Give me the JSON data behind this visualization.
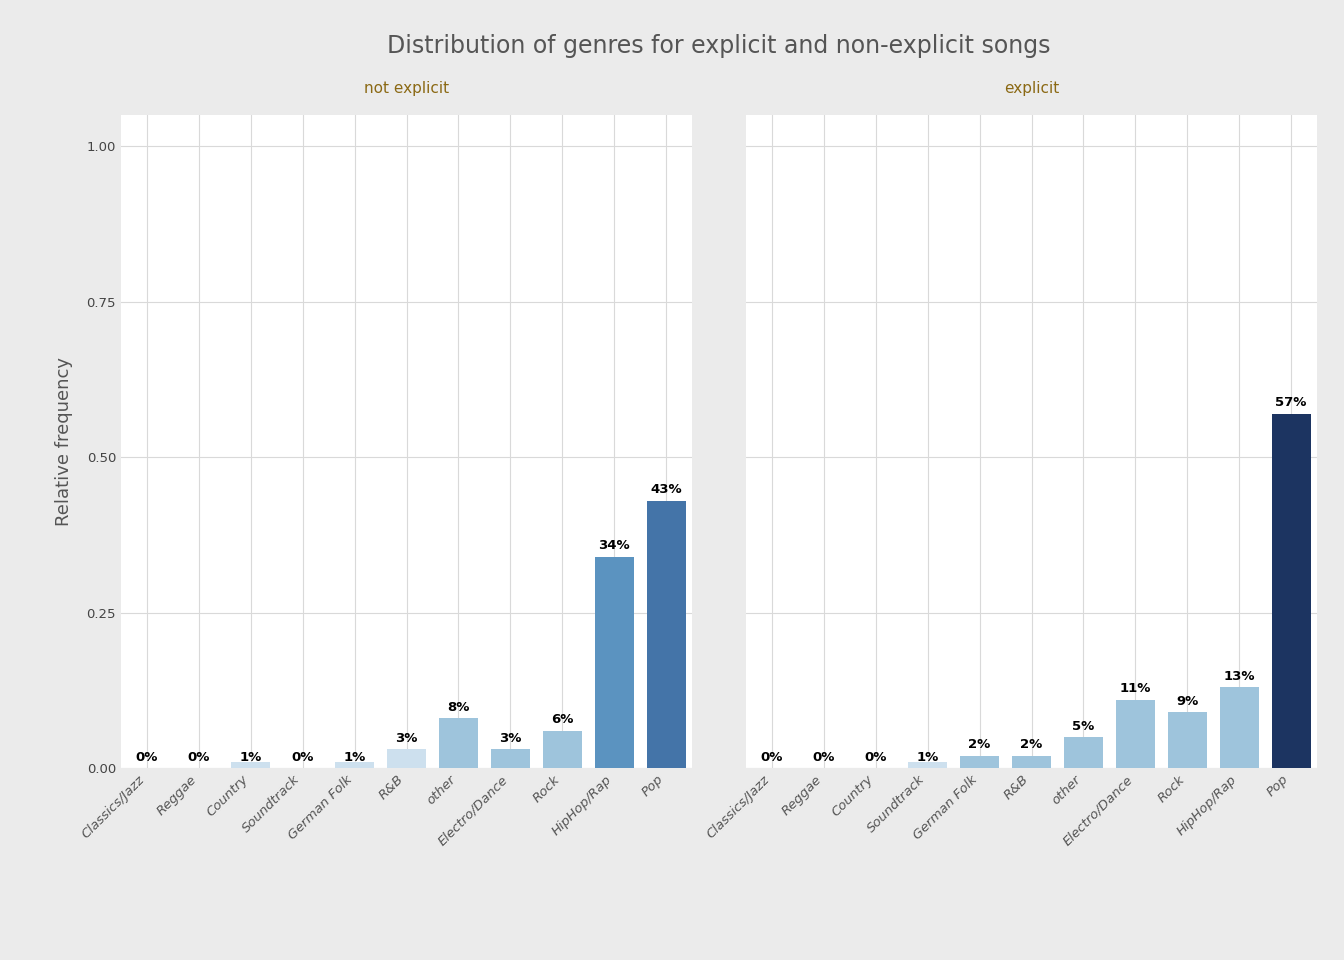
{
  "title": "Distribution of genres for explicit and non-explicit songs",
  "ylabel": "Relative frequency",
  "facets": [
    "not explicit",
    "explicit"
  ],
  "categories": [
    "Classics/Jazz",
    "Reggae",
    "Country",
    "Soundtrack",
    "German Folk",
    "R&B",
    "other",
    "Electro/Dance",
    "Rock",
    "HipHop/Rap",
    "Pop"
  ],
  "values": {
    "not explicit": [
      0.0,
      0.0,
      0.01,
      0.0,
      0.01,
      0.03,
      0.08,
      0.03,
      0.06,
      0.34,
      0.43
    ],
    "explicit": [
      0.0,
      0.0,
      0.0,
      0.01,
      0.02,
      0.02,
      0.05,
      0.11,
      0.09,
      0.13,
      0.57
    ]
  },
  "labels": {
    "not explicit": [
      "0%",
      "0%",
      "1%",
      "0%",
      "1%",
      "3%",
      "8%",
      "3%",
      "6%",
      "34%",
      "43%"
    ],
    "explicit": [
      "0%",
      "0%",
      "0%",
      "1%",
      "2%",
      "2%",
      "5%",
      "11%",
      "9%",
      "13%",
      "57%"
    ]
  },
  "bar_colors": {
    "not explicit": [
      "#cde0ee",
      "#cde0ee",
      "#cde0ee",
      "#cde0ee",
      "#cde0ee",
      "#cde0ee",
      "#9ec4dc",
      "#9ec4dc",
      "#9ec4dc",
      "#5b93c0",
      "#4474a8"
    ],
    "explicit": [
      "#cde0ee",
      "#cde0ee",
      "#cde0ee",
      "#cde0ee",
      "#9ec4dc",
      "#9ec4dc",
      "#9ec4dc",
      "#9ec4dc",
      "#9ec4dc",
      "#9ec4dc",
      "#1c3461"
    ]
  },
  "background_color": "#ebebeb",
  "panel_bg": "#ffffff",
  "grid_color": "#d9d9d9",
  "title_color": "#555555",
  "facet_label_color": "#8B6914",
  "ylim": [
    0,
    1.05
  ],
  "yticks": [
    0.0,
    0.25,
    0.5,
    0.75,
    1.0
  ],
  "bar_width": 0.75,
  "title_fontsize": 17,
  "axis_label_fontsize": 13,
  "tick_fontsize": 9.5,
  "facet_fontsize": 11,
  "annotation_fontsize": 9.5
}
